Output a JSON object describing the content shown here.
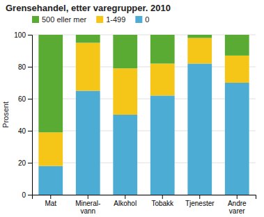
{
  "chart_data": {
    "type": "bar",
    "stacked": true,
    "title": "Grensehandel, etter varegrupper. 2010",
    "ylabel": "Prosent",
    "categories": [
      "Mat",
      "Mineral-\nvann",
      "Alkohol",
      "Tobakk",
      "Tjenester",
      "Andre\nvarer"
    ],
    "series": [
      {
        "name": "0",
        "color": "#4dacd4",
        "values": [
          18,
          65,
          50,
          62,
          82,
          70
        ]
      },
      {
        "name": "1-499",
        "color": "#f5c518",
        "values": [
          21,
          30,
          29,
          20,
          16,
          17
        ]
      },
      {
        "name": "500 eller mer",
        "color": "#5aab34",
        "values": [
          61,
          5,
          21,
          18,
          2,
          13
        ]
      }
    ],
    "ylim": [
      0,
      100
    ],
    "yticks": [
      0,
      20,
      40,
      60,
      80,
      100
    ],
    "grid": true,
    "legend": "top"
  }
}
